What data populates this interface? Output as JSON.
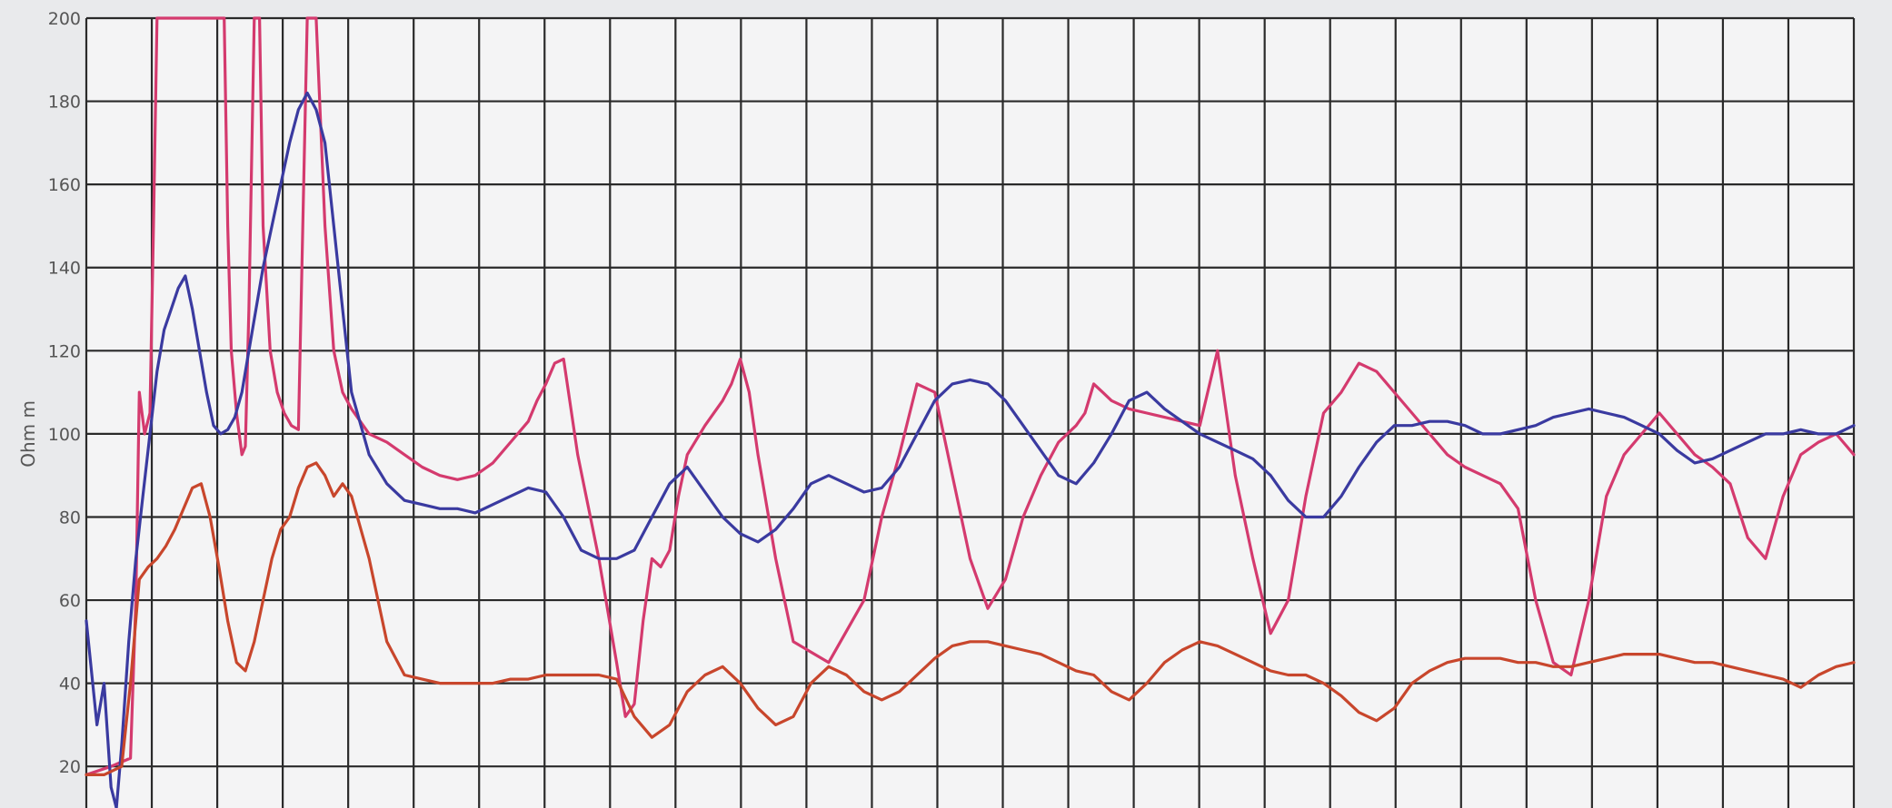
{
  "chart_data": {
    "type": "line",
    "ylabel": "Ohm m",
    "ylim": [
      10,
      200
    ],
    "yticks": [
      20,
      40,
      60,
      80,
      100,
      120,
      140,
      160,
      180,
      200
    ],
    "xlim": [
      0,
      1000
    ],
    "grid": true,
    "colors": {
      "series_1": "#d43a6e",
      "series_2": "#3a3aa0",
      "series_3": "#c8462c"
    },
    "series": [
      {
        "color": "#d43a6e",
        "x": [
          0,
          14,
          25,
          28,
          30,
          33,
          36,
          38,
          40,
          42,
          44,
          50,
          55,
          60,
          78,
          80,
          82,
          85,
          88,
          90,
          92,
          95,
          98,
          100,
          104,
          108,
          112,
          116,
          120,
          125,
          130,
          135,
          140,
          145,
          150,
          160,
          170,
          180,
          190,
          200,
          210,
          220,
          230,
          240,
          250,
          255,
          260,
          265,
          270,
          278,
          290,
          300,
          305,
          310,
          315,
          320,
          325,
          330,
          335,
          340,
          350,
          360,
          365,
          370,
          375,
          380,
          390,
          400,
          420,
          440,
          450,
          460,
          470,
          480,
          490,
          500,
          510,
          520,
          530,
          540,
          550,
          560,
          565,
          570,
          575,
          580,
          590,
          600,
          610,
          620,
          630,
          640,
          650,
          660,
          670,
          680,
          690,
          700,
          710,
          720,
          730,
          740,
          750,
          760,
          770,
          780,
          790,
          800,
          810,
          820,
          830,
          840,
          850,
          860,
          870,
          880,
          890,
          900,
          910,
          920,
          930,
          940,
          950,
          960,
          970,
          980,
          990,
          1000
        ],
        "y": [
          18,
          20,
          22,
          60,
          110,
          100,
          105,
          150,
          200,
          200,
          200,
          200,
          200,
          200,
          200,
          150,
          120,
          105,
          95,
          97,
          130,
          200,
          200,
          150,
          120,
          110,
          105,
          102,
          101,
          200,
          200,
          150,
          120,
          110,
          106,
          100,
          98,
          95,
          92,
          90,
          89,
          90,
          93,
          98,
          103,
          108,
          112,
          117,
          118,
          95,
          70,
          45,
          32,
          35,
          55,
          70,
          68,
          72,
          85,
          95,
          102,
          108,
          112,
          118,
          110,
          95,
          70,
          50,
          45,
          60,
          80,
          95,
          112,
          110,
          90,
          70,
          58,
          65,
          80,
          90,
          98,
          102,
          105,
          112,
          110,
          108,
          106,
          105,
          104,
          103,
          102,
          120,
          90,
          70,
          52,
          60,
          85,
          105,
          110,
          117,
          115,
          110,
          105,
          100,
          95,
          92,
          90,
          88,
          82,
          60,
          45,
          42,
          60,
          85,
          95,
          100,
          105,
          100,
          95,
          92,
          88,
          75,
          70,
          85,
          95,
          98,
          100,
          95
        ]
      },
      {
        "color": "#3a3aa0",
        "x": [
          0,
          6,
          10,
          14,
          17,
          20,
          24,
          28,
          32,
          36,
          40,
          44,
          48,
          52,
          56,
          60,
          64,
          68,
          72,
          76,
          80,
          84,
          88,
          92,
          96,
          100,
          105,
          110,
          115,
          120,
          125,
          130,
          135,
          140,
          145,
          150,
          160,
          170,
          180,
          190,
          200,
          210,
          220,
          230,
          240,
          250,
          260,
          270,
          280,
          290,
          300,
          310,
          320,
          330,
          340,
          350,
          360,
          370,
          380,
          390,
          400,
          410,
          420,
          430,
          440,
          450,
          460,
          470,
          480,
          490,
          500,
          510,
          520,
          530,
          540,
          550,
          560,
          570,
          580,
          590,
          600,
          610,
          620,
          630,
          640,
          650,
          660,
          670,
          680,
          690,
          700,
          710,
          720,
          730,
          740,
          750,
          760,
          770,
          780,
          790,
          800,
          810,
          820,
          830,
          840,
          850,
          860,
          870,
          880,
          890,
          900,
          910,
          920,
          930,
          940,
          950,
          960,
          970,
          980,
          990,
          1000
        ],
        "y": [
          55,
          30,
          40,
          15,
          10,
          25,
          50,
          70,
          85,
          100,
          115,
          125,
          130,
          135,
          138,
          130,
          120,
          110,
          102,
          100,
          101,
          104,
          110,
          120,
          130,
          140,
          150,
          160,
          170,
          178,
          182,
          178,
          170,
          150,
          130,
          110,
          95,
          88,
          84,
          83,
          82,
          82,
          81,
          83,
          85,
          87,
          86,
          80,
          72,
          70,
          70,
          72,
          80,
          88,
          92,
          86,
          80,
          76,
          74,
          77,
          82,
          88,
          90,
          88,
          86,
          87,
          92,
          100,
          108,
          112,
          113,
          112,
          108,
          102,
          96,
          90,
          88,
          93,
          100,
          108,
          110,
          106,
          103,
          100,
          98,
          96,
          94,
          90,
          84,
          80,
          80,
          85,
          92,
          98,
          102,
          102,
          103,
          103,
          102,
          100,
          100,
          101,
          102,
          104,
          105,
          106,
          105,
          104,
          102,
          100,
          96,
          93,
          94,
          96,
          98,
          100,
          100,
          101,
          100,
          100,
          102
        ]
      },
      {
        "color": "#c8462c",
        "x": [
          0,
          10,
          20,
          25,
          30,
          35,
          40,
          45,
          50,
          55,
          60,
          65,
          70,
          75,
          80,
          85,
          90,
          95,
          100,
          105,
          110,
          115,
          120,
          125,
          130,
          135,
          140,
          145,
          150,
          160,
          170,
          180,
          190,
          200,
          210,
          220,
          230,
          240,
          250,
          260,
          270,
          280,
          290,
          300,
          310,
          320,
          330,
          340,
          350,
          360,
          370,
          380,
          390,
          400,
          410,
          420,
          430,
          440,
          450,
          460,
          470,
          480,
          490,
          500,
          510,
          520,
          530,
          540,
          550,
          560,
          570,
          580,
          590,
          600,
          610,
          620,
          630,
          640,
          650,
          660,
          670,
          680,
          690,
          700,
          710,
          720,
          730,
          740,
          750,
          760,
          770,
          780,
          790,
          800,
          810,
          820,
          830,
          840,
          850,
          860,
          870,
          880,
          890,
          900,
          910,
          920,
          930,
          940,
          950,
          960,
          970,
          980,
          990,
          1000
        ],
        "y": [
          18,
          18,
          20,
          40,
          65,
          68,
          70,
          73,
          77,
          82,
          87,
          88,
          80,
          68,
          55,
          45,
          43,
          50,
          60,
          70,
          77,
          80,
          87,
          92,
          93,
          90,
          85,
          88,
          85,
          70,
          50,
          42,
          41,
          40,
          40,
          40,
          40,
          41,
          41,
          42,
          42,
          42,
          42,
          41,
          32,
          27,
          30,
          38,
          42,
          44,
          40,
          34,
          30,
          32,
          40,
          44,
          42,
          38,
          36,
          38,
          42,
          46,
          49,
          50,
          50,
          49,
          48,
          47,
          45,
          43,
          42,
          38,
          36,
          40,
          45,
          48,
          50,
          49,
          47,
          45,
          43,
          42,
          42,
          40,
          37,
          33,
          31,
          34,
          40,
          43,
          45,
          46,
          46,
          46,
          45,
          45,
          44,
          44,
          45,
          46,
          47,
          47,
          47,
          46,
          45,
          45,
          44,
          43,
          42,
          41,
          39,
          42,
          44,
          45
        ]
      }
    ]
  }
}
